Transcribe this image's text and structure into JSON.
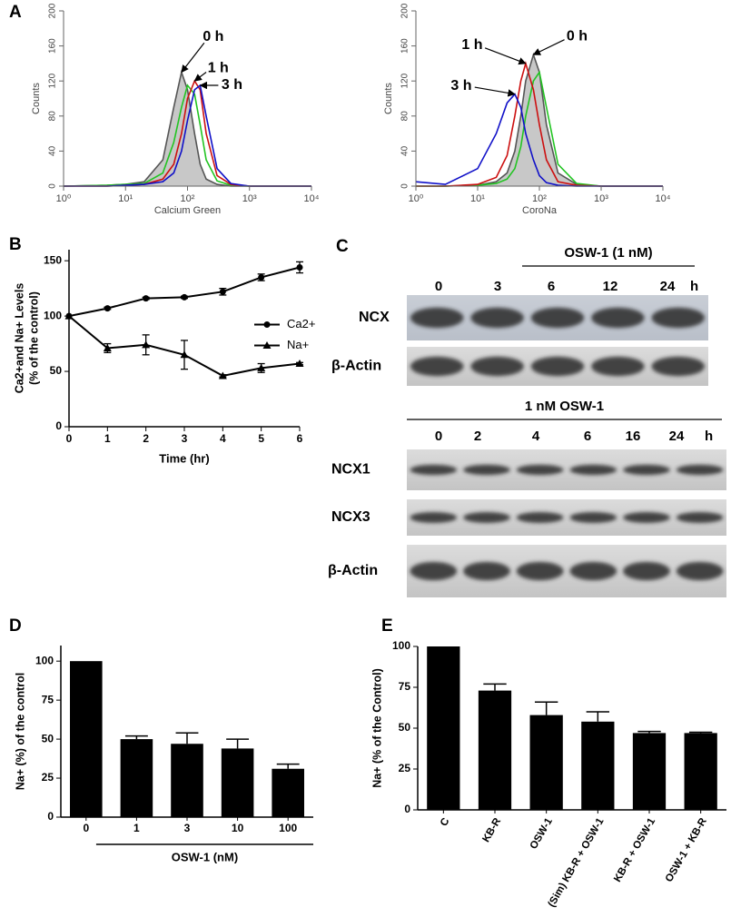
{
  "chart_data": [
    {
      "type": "line",
      "panel_label": "A",
      "xlabel": "Calcium Green",
      "ylabel": "Counts",
      "xscale": "log",
      "xlim": [
        1,
        10000
      ],
      "xticks": [
        {
          "value": 1,
          "label": "10⁰"
        },
        {
          "value": 10,
          "label": "10¹"
        },
        {
          "value": 100,
          "label": "10²"
        },
        {
          "value": 1000,
          "label": "10³"
        },
        {
          "value": 10000,
          "label": "10⁴"
        }
      ],
      "ylim": [
        0,
        200
      ],
      "yticks": [
        0,
        40,
        80,
        120,
        160,
        200
      ],
      "x": [
        1,
        5,
        10,
        20,
        40,
        60,
        80,
        100,
        130,
        160,
        200,
        300,
        500,
        1000,
        10000
      ],
      "series": [
        {
          "color": "#555555",
          "fill": "#c8c8c8",
          "label": "0 h",
          "values": [
            0,
            1,
            2,
            5,
            30,
            90,
            130,
            110,
            60,
            25,
            8,
            2,
            0,
            0,
            0
          ]
        },
        {
          "color": "#22c422",
          "values": [
            0,
            1,
            2,
            3,
            15,
            50,
            90,
            115,
            105,
            70,
            30,
            6,
            1,
            0,
            0
          ]
        },
        {
          "color": "#cc1010",
          "label": "1 h",
          "values": [
            0,
            0,
            1,
            2,
            8,
            25,
            60,
            100,
            120,
            110,
            60,
            12,
            2,
            0,
            0
          ]
        },
        {
          "color": "#1010c8",
          "label": "3 h",
          "values": [
            0,
            0,
            1,
            2,
            5,
            15,
            40,
            75,
            110,
            115,
            80,
            20,
            3,
            0,
            0
          ]
        }
      ]
    },
    {
      "type": "line",
      "xlabel": "CoroNa",
      "ylabel": "Counts",
      "xscale": "log",
      "xlim": [
        1,
        10000
      ],
      "xticks": [
        {
          "value": 1,
          "label": "10⁰"
        },
        {
          "value": 10,
          "label": "10¹"
        },
        {
          "value": 100,
          "label": "10²"
        },
        {
          "value": 1000,
          "label": "10³"
        },
        {
          "value": 10000,
          "label": "10⁴"
        }
      ],
      "ylim": [
        0,
        200
      ],
      "yticks": [
        0,
        40,
        80,
        120,
        160,
        200
      ],
      "x": [
        1,
        3,
        10,
        20,
        30,
        40,
        50,
        60,
        80,
        100,
        130,
        200,
        400,
        1000,
        10000
      ],
      "series": [
        {
          "color": "#555555",
          "fill": "#c8c8c8",
          "label": "0 h",
          "values": [
            0,
            0,
            1,
            5,
            15,
            40,
            80,
            120,
            150,
            130,
            70,
            15,
            2,
            0,
            0
          ]
        },
        {
          "color": "#22c422",
          "values": [
            0,
            0,
            1,
            3,
            8,
            20,
            45,
            80,
            120,
            130,
            90,
            25,
            3,
            0,
            0
          ]
        },
        {
          "color": "#cc1010",
          "label": "1 h",
          "values": [
            0,
            0,
            2,
            10,
            35,
            80,
            120,
            140,
            110,
            70,
            30,
            5,
            1,
            0,
            0
          ]
        },
        {
          "color": "#1010c8",
          "label": "3 h",
          "values": [
            5,
            2,
            20,
            60,
            95,
            105,
            90,
            60,
            30,
            12,
            4,
            1,
            0,
            0,
            0
          ]
        }
      ]
    },
    {
      "type": "line",
      "panel_label": "B",
      "xlabel": "Time (hr)",
      "ylabel": [
        "Ca2+and Na+ Levels",
        "(% of the control)"
      ],
      "xlim": [
        0,
        6
      ],
      "xticks": [
        0,
        1,
        2,
        3,
        4,
        5,
        6
      ],
      "ylim": [
        0,
        160
      ],
      "yticks": [
        0,
        50,
        100,
        150
      ],
      "legend": "right",
      "x": [
        0,
        1,
        2,
        3,
        4,
        5,
        6
      ],
      "series": [
        {
          "name": "Ca2+",
          "color": "#000000",
          "marker": "circle",
          "values": [
            100,
            107,
            116,
            117,
            122,
            135,
            144
          ],
          "errors": [
            0,
            1,
            1,
            1,
            3,
            3,
            5
          ]
        },
        {
          "name": "Na+",
          "color": "#000000",
          "marker": "triangle",
          "values": [
            100,
            71,
            74,
            65,
            46,
            53,
            57
          ],
          "errors": [
            0,
            4,
            9,
            13,
            1,
            4,
            1
          ]
        }
      ]
    },
    {
      "type": "bar",
      "panel_label": "D",
      "xlabel": "OSW-1 (nM)",
      "ylabel": "Na+ (%) of the control",
      "color": "#000000",
      "ylim": [
        0,
        110
      ],
      "yticks": [
        0,
        25,
        50,
        75,
        100
      ],
      "categories": [
        "0",
        "1",
        "3",
        "10",
        "100"
      ],
      "values": [
        100,
        50,
        47,
        44,
        31
      ],
      "errors": [
        0,
        2,
        7,
        6,
        3
      ]
    },
    {
      "type": "bar",
      "panel_label": "E",
      "ylabel": "Na+ (% of the Control)",
      "color": "#000000",
      "ylim": [
        0,
        100
      ],
      "yticks": [
        0,
        25,
        50,
        75,
        100
      ],
      "categories": [
        "C",
        "KB-R",
        "OSW-1",
        "(Sim) KB-R + OSW-1",
        "KB-R + OSW-1",
        "OSW-1 + KB-R"
      ],
      "values": [
        100,
        73,
        58,
        54,
        47,
        47
      ],
      "errors": [
        0,
        4,
        8,
        6,
        1,
        0.5
      ]
    }
  ],
  "blot": {
    "panel_label": "C",
    "blocks": [
      {
        "treatment": "OSW-1 (1 nM)",
        "lanes": [
          "0",
          "3",
          "6",
          "12",
          "24"
        ],
        "unit": "h",
        "rows": [
          "NCX",
          "β-Actin"
        ]
      },
      {
        "treatment": "1 nM OSW-1",
        "lanes": [
          "0",
          "2",
          "4",
          "6",
          "16",
          "24"
        ],
        "unit": "h",
        "rows": [
          "NCX1",
          "NCX3",
          "β-Actin"
        ]
      }
    ]
  }
}
